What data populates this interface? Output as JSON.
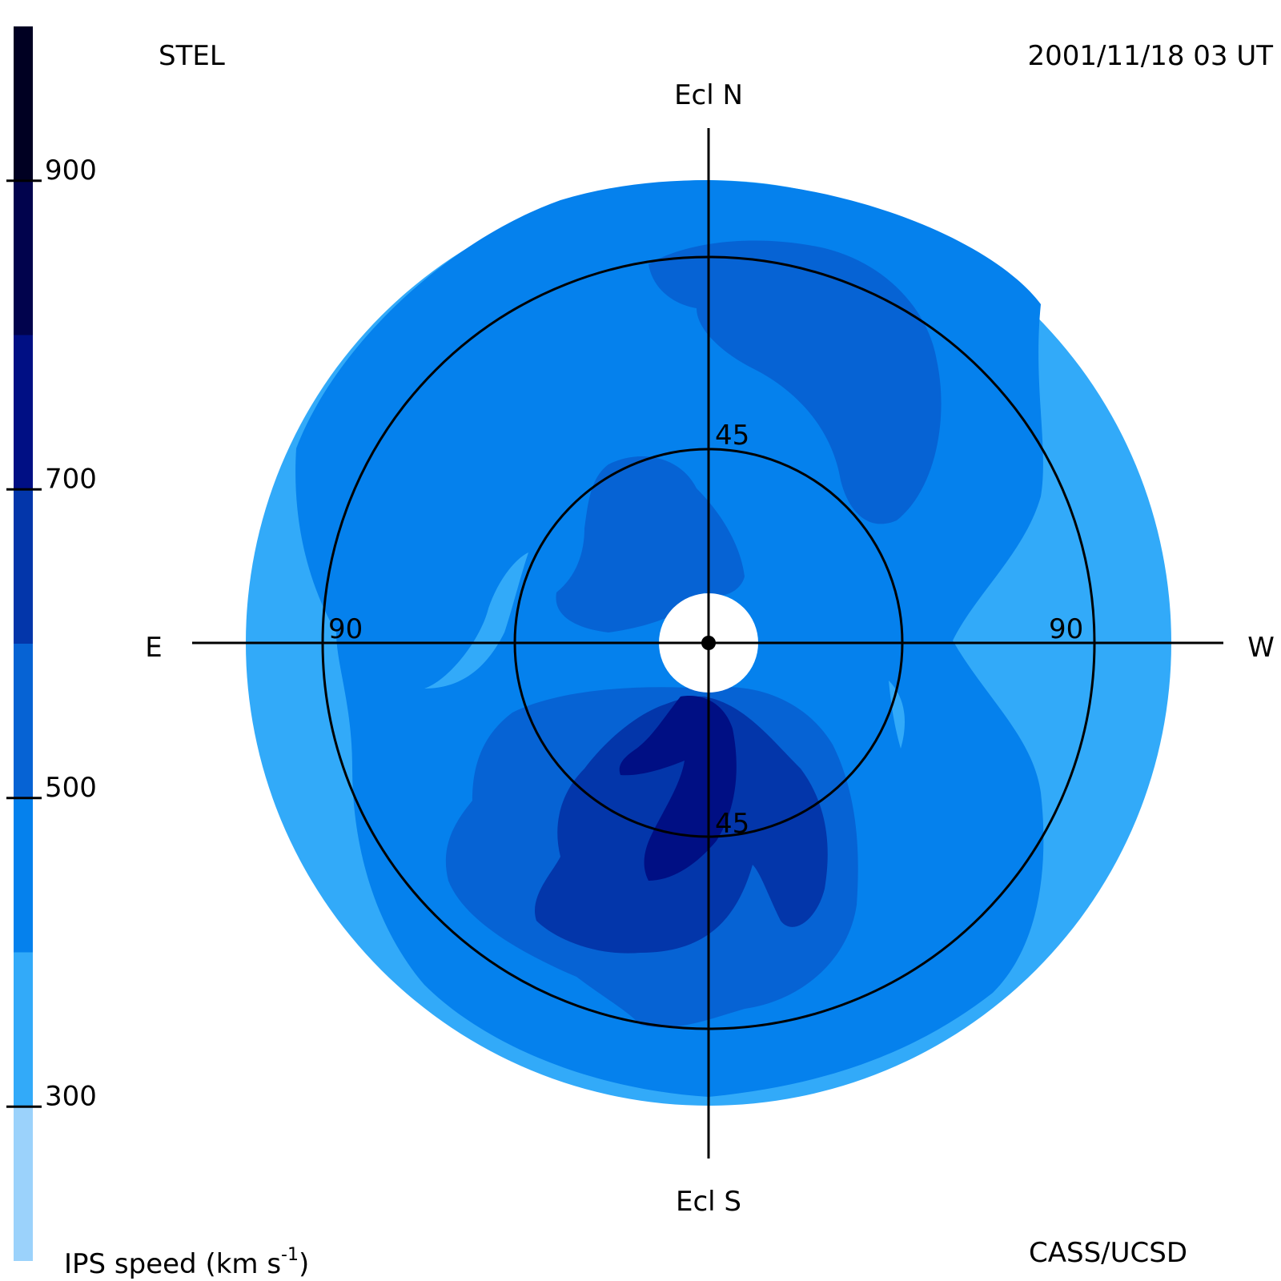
{
  "chart_data": {
    "type": "heatmap",
    "projection": "fisheye sky map",
    "title": "",
    "observatory": "STEL",
    "timestamp": "2001/11/18 03 UT",
    "credit": "CASS/UCSD",
    "directions": {
      "north": "Ecl N",
      "south": "Ecl S",
      "east": "E",
      "west": "W"
    },
    "elongation_rings": [
      {
        "value": 45,
        "labels": [
          "45",
          "45"
        ]
      },
      {
        "value": 90,
        "labels": [
          "90",
          "90"
        ]
      }
    ],
    "colorbar": {
      "label_prefix": "IPS speed (km s",
      "label_exponent": "-1",
      "label_suffix": ")",
      "range": [
        200,
        1000
      ],
      "ticks": [
        300,
        500,
        700,
        900
      ],
      "bins": [
        {
          "range": [
            200,
            300
          ],
          "color": "#9bd2fb"
        },
        {
          "range": [
            300,
            400
          ],
          "color": "#32aaf9"
        },
        {
          "range": [
            400,
            500
          ],
          "color": "#0581ed"
        },
        {
          "range": [
            500,
            600
          ],
          "color": "#0663d4"
        },
        {
          "range": [
            600,
            700
          ],
          "color": "#0336aa"
        },
        {
          "range": [
            700,
            800
          ],
          "color": "#000f84"
        },
        {
          "range": [
            800,
            900
          ],
          "color": "#01034d"
        },
        {
          "range": [
            900,
            1000
          ],
          "color": "#000022"
        }
      ]
    },
    "max_elongation": 120,
    "regions": [
      {
        "speed_range": [
          300,
          400
        ],
        "description": "outer rim band and E/W sectors"
      },
      {
        "speed_range": [
          400,
          500
        ],
        "description": "bulk of the sky map"
      },
      {
        "speed_range": [
          500,
          600
        ],
        "description": "NW lobe, ring around south fast stream"
      },
      {
        "speed_range": [
          600,
          700
        ],
        "description": "southern high speed stream"
      },
      {
        "speed_range": [
          700,
          800
        ],
        "description": "core of southern stream just below sun"
      }
    ]
  }
}
